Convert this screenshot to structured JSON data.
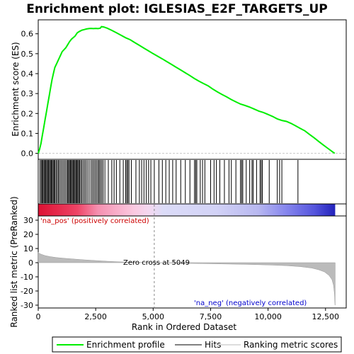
{
  "chart_data": {
    "type": "line",
    "title": "Enrichment plot: IGLESIAS_E2F_TARGETS_UP",
    "xlabel": "Rank in Ordered Dataset",
    "xlim": [
      0,
      13400
    ],
    "x_ticks": [
      "0",
      "2,500",
      "5,000",
      "7,500",
      "10,000",
      "12,500"
    ],
    "x_tick_values": [
      0,
      2500,
      5000,
      7500,
      10000,
      12500
    ],
    "es_panel": {
      "ylabel": "Enrichment score (ES)",
      "ylim": [
        -0.03,
        0.67
      ],
      "y_ticks": [
        "0.0",
        "0.1",
        "0.2",
        "0.3",
        "0.4",
        "0.5",
        "0.6"
      ],
      "y_tick_values": [
        0.0,
        0.1,
        0.2,
        0.3,
        0.4,
        0.5,
        0.6
      ],
      "series": [
        {
          "name": "Enrichment profile",
          "color": "#00ee00",
          "points": [
            [
              0,
              0.0
            ],
            [
              60,
              0.02
            ],
            [
              120,
              0.05
            ],
            [
              180,
              0.09
            ],
            [
              240,
              0.13
            ],
            [
              300,
              0.17
            ],
            [
              360,
              0.21
            ],
            [
              420,
              0.25
            ],
            [
              480,
              0.29
            ],
            [
              540,
              0.33
            ],
            [
              600,
              0.37
            ],
            [
              660,
              0.4
            ],
            [
              720,
              0.43
            ],
            [
              800,
              0.45
            ],
            [
              880,
              0.47
            ],
            [
              960,
              0.49
            ],
            [
              1040,
              0.51
            ],
            [
              1120,
              0.52
            ],
            [
              1200,
              0.53
            ],
            [
              1280,
              0.545
            ],
            [
              1360,
              0.56
            ],
            [
              1440,
              0.572
            ],
            [
              1520,
              0.58
            ],
            [
              1600,
              0.588
            ],
            [
              1700,
              0.605
            ],
            [
              1800,
              0.612
            ],
            [
              1900,
              0.618
            ],
            [
              2000,
              0.621
            ],
            [
              2100,
              0.624
            ],
            [
              2200,
              0.626
            ],
            [
              2300,
              0.627
            ],
            [
              2400,
              0.626
            ],
            [
              2500,
              0.627
            ],
            [
              2600,
              0.626
            ],
            [
              2700,
              0.628
            ],
            [
              2750,
              0.636
            ],
            [
              2850,
              0.634
            ],
            [
              3000,
              0.628
            ],
            [
              3200,
              0.617
            ],
            [
              3400,
              0.605
            ],
            [
              3600,
              0.593
            ],
            [
              3800,
              0.58
            ],
            [
              4000,
              0.57
            ],
            [
              4200,
              0.556
            ],
            [
              4400,
              0.542
            ],
            [
              4600,
              0.528
            ],
            [
              4800,
              0.514
            ],
            [
              5000,
              0.5
            ],
            [
              5200,
              0.487
            ],
            [
              5400,
              0.474
            ],
            [
              5600,
              0.46
            ],
            [
              5800,
              0.446
            ],
            [
              6000,
              0.432
            ],
            [
              6200,
              0.418
            ],
            [
              6400,
              0.404
            ],
            [
              6600,
              0.39
            ],
            [
              6800,
              0.375
            ],
            [
              7000,
              0.362
            ],
            [
              7200,
              0.35
            ],
            [
              7400,
              0.338
            ],
            [
              7600,
              0.322
            ],
            [
              7800,
              0.308
            ],
            [
              8000,
              0.295
            ],
            [
              8200,
              0.283
            ],
            [
              8400,
              0.27
            ],
            [
              8600,
              0.258
            ],
            [
              8800,
              0.247
            ],
            [
              9000,
              0.24
            ],
            [
              9200,
              0.232
            ],
            [
              9400,
              0.222
            ],
            [
              9600,
              0.212
            ],
            [
              9800,
              0.205
            ],
            [
              10000,
              0.195
            ],
            [
              10200,
              0.185
            ],
            [
              10400,
              0.173
            ],
            [
              10600,
              0.165
            ],
            [
              10800,
              0.16
            ],
            [
              11000,
              0.15
            ],
            [
              11200,
              0.138
            ],
            [
              11400,
              0.125
            ],
            [
              11600,
              0.113
            ],
            [
              11800,
              0.095
            ],
            [
              12000,
              0.078
            ],
            [
              12200,
              0.06
            ],
            [
              12400,
              0.042
            ],
            [
              12600,
              0.025
            ],
            [
              12800,
              0.008
            ],
            [
              12900,
              0.0
            ]
          ]
        }
      ]
    },
    "hits": [
      80,
      130,
      170,
      210,
      250,
      290,
      330,
      370,
      410,
      450,
      490,
      530,
      570,
      610,
      650,
      690,
      730,
      780,
      830,
      880,
      930,
      990,
      1050,
      1110,
      1170,
      1230,
      1280,
      1320,
      1360,
      1400,
      1440,
      1480,
      1520,
      1560,
      1600,
      1640,
      1680,
      1720,
      1760,
      1800,
      1850,
      1900,
      1960,
      2020,
      2080,
      2150,
      2220,
      2300,
      2360,
      2420,
      2480,
      2540,
      2600,
      2650,
      2700,
      2760,
      2820,
      2900,
      3050,
      3200,
      3300,
      3400,
      3550,
      3700,
      3800,
      3850,
      3900,
      3950,
      4050,
      4250,
      4400,
      4500,
      4600,
      4700,
      4800,
      4900,
      5050,
      5250,
      5400,
      5550,
      5700,
      5850,
      6000,
      6200,
      6400,
      6600,
      6800,
      6850,
      6900,
      7050,
      7150,
      7250,
      7500,
      7650,
      7750,
      7900,
      8100,
      8300,
      8400,
      8600,
      8800,
      8850,
      8900,
      9050,
      9200,
      9300,
      9350,
      9500,
      9650,
      9700,
      9750,
      10050,
      10400,
      10500,
      10600,
      11300
    ],
    "metric_panel": {
      "ylabel": "Ranked list metric (PreRanked)",
      "ylim": [
        -32,
        33
      ],
      "y_ticks": [
        "30",
        "20",
        "10",
        "0",
        "-10",
        "-20",
        "-30"
      ],
      "y_tick_values": [
        30,
        20,
        10,
        0,
        -10,
        -20,
        -30
      ],
      "profile": [
        [
          0,
          7.5
        ],
        [
          50,
          6.5
        ],
        [
          150,
          5.8
        ],
        [
          300,
          5.0
        ],
        [
          500,
          4.3
        ],
        [
          800,
          3.6
        ],
        [
          1200,
          3.0
        ],
        [
          1600,
          2.5
        ],
        [
          2000,
          2.0
        ],
        [
          2500,
          1.5
        ],
        [
          3000,
          1.0
        ],
        [
          3500,
          0.6
        ],
        [
          4000,
          0.3
        ],
        [
          4600,
          0.1
        ],
        [
          5049,
          0.0
        ],
        [
          6000,
          -0.3
        ],
        [
          7000,
          -0.6
        ],
        [
          8000,
          -0.9
        ],
        [
          9000,
          -1.2
        ],
        [
          10000,
          -1.6
        ],
        [
          10800,
          -2.1
        ],
        [
          11400,
          -2.8
        ],
        [
          11900,
          -3.8
        ],
        [
          12200,
          -5.0
        ],
        [
          12450,
          -6.5
        ],
        [
          12650,
          -9.0
        ],
        [
          12780,
          -12.0
        ],
        [
          12850,
          -16.0
        ],
        [
          12890,
          -22.0
        ],
        [
          12910,
          -30.0
        ],
        [
          12920,
          -30.0
        ]
      ],
      "zero_cross_label": "Zero cross at 5049",
      "zero_cross": 5049,
      "pos_label": "'na_pos' (positively correlated)",
      "neg_label": "'na_neg' (negatively correlated)"
    },
    "legend": {
      "placement": "bottom",
      "entries": [
        {
          "label": "Enrichment profile",
          "color": "#00ee00"
        },
        {
          "label": "Hits",
          "color": "#000000"
        },
        {
          "label": "Ranking metric scores",
          "color": "#bbbbbb"
        }
      ]
    }
  }
}
